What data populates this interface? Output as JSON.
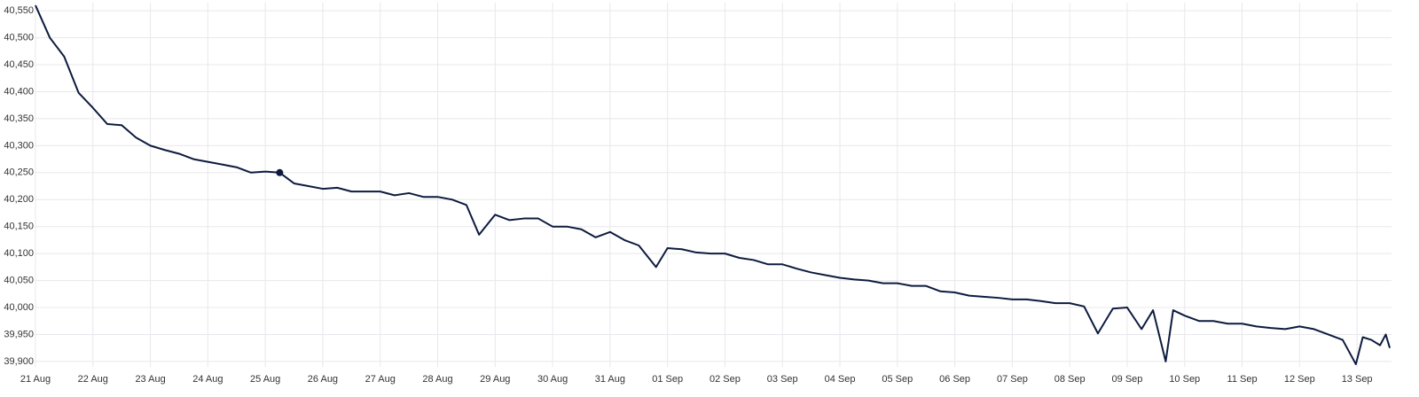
{
  "chart_data": {
    "type": "line",
    "x": [
      0,
      0.25,
      0.5,
      0.75,
      1,
      1.25,
      1.5,
      1.75,
      2,
      2.25,
      2.5,
      2.75,
      3,
      3.25,
      3.5,
      3.75,
      4,
      4.25,
      4.5,
      4.75,
      5,
      5.25,
      5.5,
      5.75,
      6,
      6.25,
      6.5,
      6.75,
      7,
      7.25,
      7.5,
      7.72,
      8,
      8.25,
      8.5,
      8.75,
      9,
      9.25,
      9.5,
      9.75,
      10,
      10.25,
      10.5,
      10.8,
      11,
      11.25,
      11.5,
      11.75,
      12,
      12.25,
      12.5,
      12.75,
      13,
      13.25,
      13.5,
      13.75,
      14,
      14.25,
      14.5,
      14.75,
      15,
      15.25,
      15.5,
      15.75,
      16,
      16.25,
      16.5,
      16.75,
      17,
      17.25,
      17.5,
      17.75,
      18,
      18.25,
      18.49,
      18.75,
      19,
      19.25,
      19.45,
      19.67,
      19.8,
      20,
      20.25,
      20.5,
      20.75,
      21,
      21.25,
      21.5,
      21.75,
      22,
      22.25,
      22.5,
      22.75,
      22.98,
      23.1,
      23.25,
      23.4,
      23.5,
      23.57
    ],
    "series": [
      {
        "color": "#0d1b3e",
        "values": [
          40560,
          40500,
          40465,
          40398,
          40370,
          40340,
          40338,
          40315,
          40300,
          40292,
          40285,
          40275,
          40270,
          40265,
          40260,
          40250,
          40252,
          40250,
          40230,
          40225,
          40220,
          40222,
          40215,
          40215,
          40215,
          40208,
          40212,
          40205,
          40205,
          40200,
          40190,
          40135,
          40172,
          40162,
          40165,
          40165,
          40150,
          40150,
          40145,
          40130,
          40140,
          40125,
          40115,
          40075,
          40110,
          40108,
          40102,
          40100,
          40100,
          40092,
          40088,
          40080,
          40080,
          40072,
          40065,
          40060,
          40055,
          40052,
          40050,
          40045,
          40045,
          40040,
          40040,
          40030,
          40028,
          40022,
          40020,
          40018,
          40015,
          40015,
          40012,
          40008,
          40008,
          40002,
          39952,
          39998,
          40000,
          39960,
          39995,
          39900,
          39995,
          39985,
          39975,
          39975,
          39970,
          39970,
          39965,
          39962,
          39960,
          39965,
          39960,
          39950,
          39940,
          39895,
          39945,
          39940,
          39930,
          39950,
          39925
        ]
      }
    ],
    "highlight": {
      "x": 4.25,
      "y": 40250
    },
    "xlim": [
      0,
      23.6
    ],
    "xticks": [
      {
        "value": 0,
        "label": "21 Aug"
      },
      {
        "value": 1,
        "label": "22 Aug"
      },
      {
        "value": 2,
        "label": "23 Aug"
      },
      {
        "value": 3,
        "label": "24 Aug"
      },
      {
        "value": 4,
        "label": "25 Aug"
      },
      {
        "value": 5,
        "label": "26 Aug"
      },
      {
        "value": 6,
        "label": "27 Aug"
      },
      {
        "value": 7,
        "label": "28 Aug"
      },
      {
        "value": 8,
        "label": "29 Aug"
      },
      {
        "value": 9,
        "label": "30 Aug"
      },
      {
        "value": 10,
        "label": "31 Aug"
      },
      {
        "value": 11,
        "label": "01 Sep"
      },
      {
        "value": 12,
        "label": "02 Sep"
      },
      {
        "value": 13,
        "label": "03 Sep"
      },
      {
        "value": 14,
        "label": "04 Sep"
      },
      {
        "value": 15,
        "label": "05 Sep"
      },
      {
        "value": 16,
        "label": "06 Sep"
      },
      {
        "value": 17,
        "label": "07 Sep"
      },
      {
        "value": 18,
        "label": "08 Sep"
      },
      {
        "value": 19,
        "label": "09 Sep"
      },
      {
        "value": 20,
        "label": "10 Sep"
      },
      {
        "value": 21,
        "label": "11 Sep"
      },
      {
        "value": 22,
        "label": "12 Sep"
      },
      {
        "value": 23,
        "label": "13 Sep"
      }
    ],
    "ylim": [
      39890,
      40565
    ],
    "yticks": [
      {
        "value": 39900,
        "label": "39,900"
      },
      {
        "value": 39950,
        "label": "39,950"
      },
      {
        "value": 40000,
        "label": "40,000"
      },
      {
        "value": 40050,
        "label": "40,050"
      },
      {
        "value": 40100,
        "label": "40,100"
      },
      {
        "value": 40150,
        "label": "40,150"
      },
      {
        "value": 40200,
        "label": "40,200"
      },
      {
        "value": 40250,
        "label": "40,250"
      },
      {
        "value": 40300,
        "label": "40,300"
      },
      {
        "value": 40350,
        "label": "40,350"
      },
      {
        "value": 40400,
        "label": "40,400"
      },
      {
        "value": 40450,
        "label": "40,450"
      },
      {
        "value": 40500,
        "label": "40,500"
      },
      {
        "value": 40550,
        "label": "40,550"
      }
    ],
    "grid": true
  }
}
